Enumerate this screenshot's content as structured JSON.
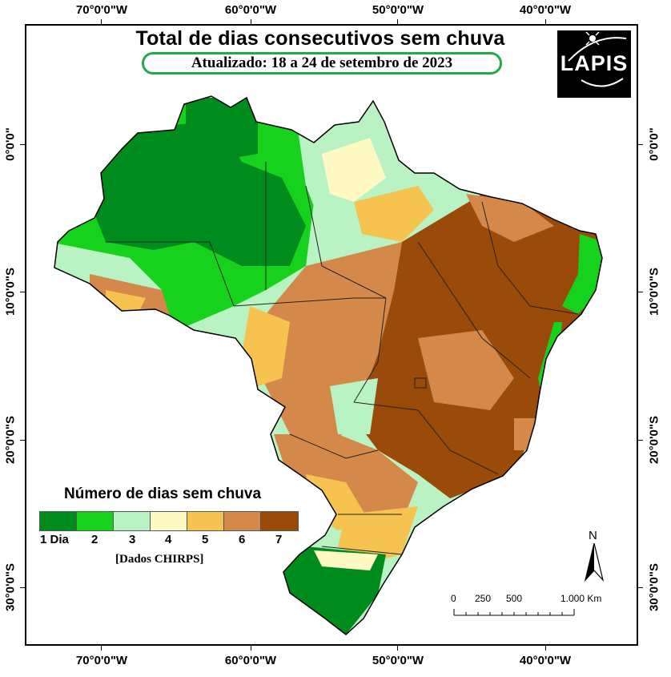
{
  "title": "Total de dias consecutivos sem chuva",
  "subtitle": "Atualizado: 18 a 24 de setembro de 2023",
  "logo": {
    "text": "LAPIS"
  },
  "axes": {
    "longitudes": [
      "70°0'0\"W",
      "60°0'0\"W",
      "50°0'0\"W",
      "40°0'0\"W"
    ],
    "latitudes": [
      "0°0'0\"",
      "10°0'0\"S",
      "20°0'0\"S",
      "30°0'0\"S"
    ]
  },
  "legend": {
    "title": "Número de dias sem chuva",
    "classes": [
      {
        "label": "1 Dia",
        "color": "#008c1c"
      },
      {
        "label": "2",
        "color": "#17d21c"
      },
      {
        "label": "3",
        "color": "#b9f3c3"
      },
      {
        "label": "4",
        "color": "#fffac4"
      },
      {
        "label": "5",
        "color": "#f6c350"
      },
      {
        "label": "6",
        "color": "#d4884a"
      },
      {
        "label": "7",
        "color": "#9a4a09"
      }
    ],
    "source": "[Dados CHIRPS]"
  },
  "north_arrow": {
    "label": "N"
  },
  "scale_bar": {
    "labels": [
      "0",
      "250",
      "500",
      "1.000 Km"
    ]
  }
}
